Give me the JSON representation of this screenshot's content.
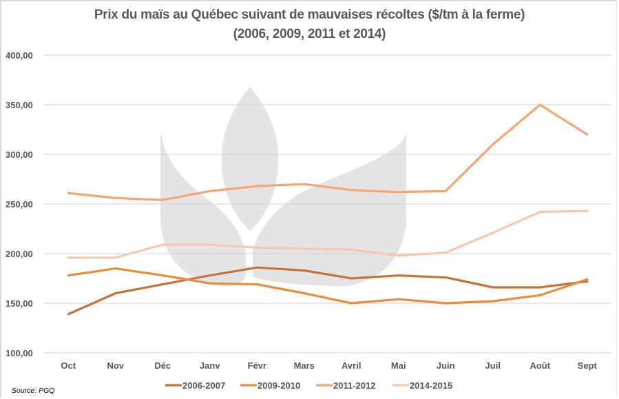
{
  "chart_data": {
    "type": "line",
    "title": "Prix du maïs au Québec suivant de mauvaises récoltes ($/tm à la ferme)",
    "subtitle": "(2006, 2009, 2011 et 2014)",
    "xlabel": "",
    "ylabel": "",
    "ylim": [
      100,
      400
    ],
    "yticks": [
      100,
      150,
      200,
      250,
      300,
      350,
      400
    ],
    "ytick_labels": [
      "100,00",
      "150,00",
      "200,00",
      "250,00",
      "300,00",
      "350,00",
      "400,00"
    ],
    "grid": true,
    "legend_position": "bottom",
    "categories": [
      "Oct",
      "Nov",
      "Déc",
      "Janv",
      "Févr",
      "Mars",
      "Avril",
      "Mai",
      "Juin",
      "Juil",
      "Août",
      "Sept"
    ],
    "series": [
      {
        "name": "2006-2007",
        "color": "#c5733a",
        "values": [
          139,
          160,
          169,
          178,
          186,
          183,
          175,
          178,
          176,
          166,
          166,
          172
        ]
      },
      {
        "name": "2009-2010",
        "color": "#e98c40",
        "values": [
          178,
          185,
          178,
          170,
          169,
          160,
          150,
          154,
          150,
          152,
          158,
          174
        ]
      },
      {
        "name": "2011-2012",
        "color": "#f4a572",
        "values": [
          261,
          256,
          254,
          263,
          268,
          270,
          264,
          262,
          263,
          310,
          350,
          320
        ]
      },
      {
        "name": "2014-2015",
        "color": "#f8c8ae",
        "values": [
          196,
          196,
          209,
          209,
          206,
          205,
          204,
          198,
          201,
          221,
          242,
          243
        ]
      }
    ],
    "source": "Source: PGQ"
  },
  "watermark": "leaf-logo-icon"
}
